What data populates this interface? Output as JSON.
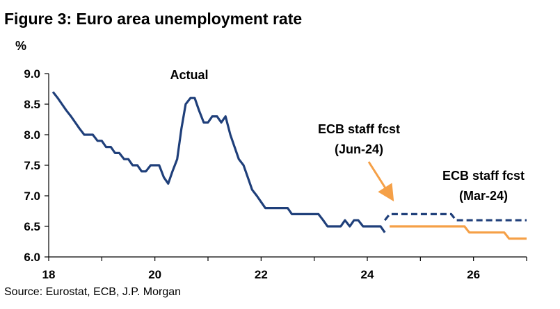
{
  "title": "Figure 3: Euro area unemployment rate",
  "unit": "%",
  "source": "Source: Eurostat, ECB, J.P. Morgan",
  "chart_data": {
    "type": "line",
    "xlim": [
      18,
      27
    ],
    "ylim": [
      6.0,
      9.0
    ],
    "x_ticks": [
      18,
      20,
      22,
      24,
      26
    ],
    "y_ticks": [
      6.0,
      6.5,
      7.0,
      7.5,
      8.0,
      8.5,
      9.0
    ],
    "x_tick_labels": [
      "18",
      "20",
      "22",
      "24",
      "26"
    ],
    "y_tick_labels": [
      "6.0",
      "6.5",
      "7.0",
      "7.5",
      "8.0",
      "8.5",
      "9.0"
    ],
    "grid": false,
    "series": [
      {
        "name": "Actual",
        "color": "#1f3f7a",
        "style": "solid",
        "points": [
          [
            18.08,
            8.7
          ],
          [
            18.17,
            8.6
          ],
          [
            18.25,
            8.5
          ],
          [
            18.33,
            8.4
          ],
          [
            18.42,
            8.3
          ],
          [
            18.5,
            8.2
          ],
          [
            18.58,
            8.1
          ],
          [
            18.67,
            8.0
          ],
          [
            18.75,
            8.0
          ],
          [
            18.83,
            8.0
          ],
          [
            18.92,
            7.9
          ],
          [
            19.0,
            7.9
          ],
          [
            19.08,
            7.8
          ],
          [
            19.17,
            7.8
          ],
          [
            19.25,
            7.7
          ],
          [
            19.33,
            7.7
          ],
          [
            19.42,
            7.6
          ],
          [
            19.5,
            7.6
          ],
          [
            19.58,
            7.5
          ],
          [
            19.67,
            7.5
          ],
          [
            19.75,
            7.4
          ],
          [
            19.83,
            7.4
          ],
          [
            19.92,
            7.5
          ],
          [
            20.0,
            7.5
          ],
          [
            20.08,
            7.5
          ],
          [
            20.17,
            7.3
          ],
          [
            20.25,
            7.2
          ],
          [
            20.33,
            7.4
          ],
          [
            20.42,
            7.6
          ],
          [
            20.5,
            8.1
          ],
          [
            20.58,
            8.5
          ],
          [
            20.67,
            8.6
          ],
          [
            20.75,
            8.6
          ],
          [
            20.83,
            8.4
          ],
          [
            20.92,
            8.2
          ],
          [
            21.0,
            8.2
          ],
          [
            21.08,
            8.3
          ],
          [
            21.17,
            8.3
          ],
          [
            21.25,
            8.2
          ],
          [
            21.33,
            8.3
          ],
          [
            21.42,
            8.0
          ],
          [
            21.5,
            7.8
          ],
          [
            21.58,
            7.6
          ],
          [
            21.67,
            7.5
          ],
          [
            21.75,
            7.3
          ],
          [
            21.83,
            7.1
          ],
          [
            21.92,
            7.0
          ],
          [
            22.0,
            6.9
          ],
          [
            22.08,
            6.8
          ],
          [
            22.17,
            6.8
          ],
          [
            22.25,
            6.8
          ],
          [
            22.33,
            6.8
          ],
          [
            22.42,
            6.8
          ],
          [
            22.5,
            6.8
          ],
          [
            22.58,
            6.7
          ],
          [
            22.67,
            6.7
          ],
          [
            22.75,
            6.7
          ],
          [
            22.83,
            6.7
          ],
          [
            22.92,
            6.7
          ],
          [
            23.0,
            6.7
          ],
          [
            23.08,
            6.7
          ],
          [
            23.17,
            6.6
          ],
          [
            23.25,
            6.5
          ],
          [
            23.33,
            6.5
          ],
          [
            23.42,
            6.5
          ],
          [
            23.5,
            6.5
          ],
          [
            23.58,
            6.6
          ],
          [
            23.67,
            6.5
          ],
          [
            23.75,
            6.6
          ],
          [
            23.83,
            6.6
          ],
          [
            23.92,
            6.5
          ],
          [
            24.0,
            6.5
          ],
          [
            24.08,
            6.5
          ],
          [
            24.17,
            6.5
          ],
          [
            24.25,
            6.5
          ],
          [
            24.33,
            6.4
          ]
        ]
      },
      {
        "name": "ECB staff fcst (Jun-24)",
        "color": "#1f3f7a",
        "style": "dashed",
        "points": [
          [
            24.33,
            6.6
          ],
          [
            24.42,
            6.7
          ],
          [
            25.58,
            6.7
          ],
          [
            25.67,
            6.6
          ],
          [
            27.0,
            6.6
          ]
        ]
      },
      {
        "name": "ECB staff fcst (Mar-24)",
        "color": "#f5a047",
        "style": "solid",
        "points": [
          [
            24.42,
            6.5
          ],
          [
            25.83,
            6.5
          ],
          [
            25.92,
            6.4
          ],
          [
            26.58,
            6.4
          ],
          [
            26.67,
            6.3
          ],
          [
            27.0,
            6.3
          ]
        ]
      }
    ],
    "annotations": [
      {
        "id": "actual",
        "lines": [
          "Actual"
        ]
      },
      {
        "id": "jun",
        "lines": [
          "ECB staff fcst",
          "(Jun-24)"
        ]
      },
      {
        "id": "mar",
        "lines": [
          "ECB staff fcst",
          "(Mar-24)"
        ]
      }
    ],
    "arrow_color": "#f5a047"
  }
}
